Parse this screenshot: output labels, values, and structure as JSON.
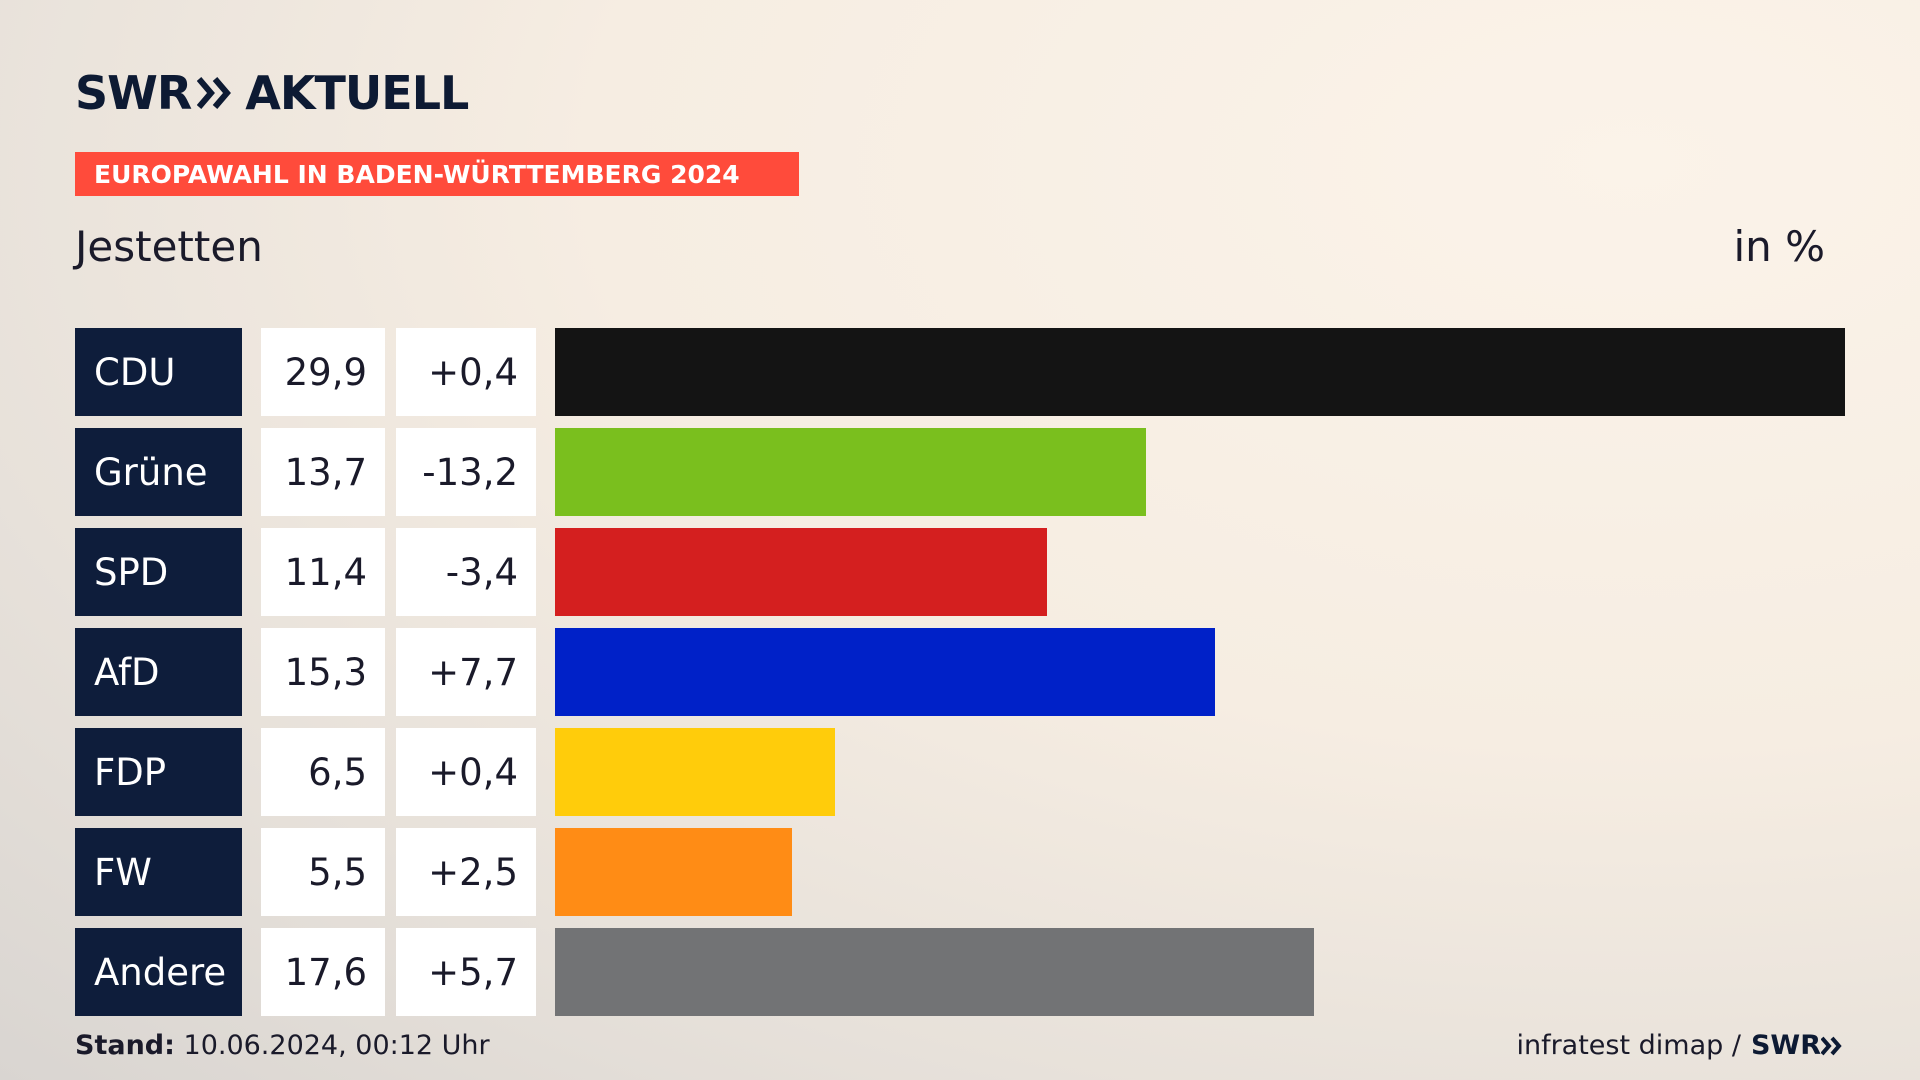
{
  "brand": {
    "logo_left": "SWR",
    "logo_right": "AKTUELL",
    "logo_icon": "double-chevron-icon"
  },
  "banner": "EUROPAWAHL IN BADEN-WÜRTTEMBERG 2024",
  "footer": {
    "stand_label": "Stand:",
    "stand_value": "10.06.2024, 00:12 Uhr",
    "source": "infratest dimap /",
    "source_logo": "SWR"
  },
  "chart_data": {
    "type": "bar",
    "title": "Jestetten",
    "unit": "in %",
    "categories": [
      "CDU",
      "Grüne",
      "SPD",
      "AfD",
      "FDP",
      "FW",
      "Andere"
    ],
    "values": [
      29.9,
      13.7,
      11.4,
      15.3,
      6.5,
      5.5,
      17.6
    ],
    "value_labels": [
      "29,9",
      "13,7",
      "11,4",
      "15,3",
      "6,5",
      "5,5",
      "17,6"
    ],
    "change_labels": [
      "+0,4",
      "-13,2",
      "-3,4",
      "+7,7",
      "+0,4",
      "+2,5",
      "+5,7"
    ],
    "colors": [
      "#141414",
      "#7abf1e",
      "#d41f1f",
      "#0021c8",
      "#ffcc0b",
      "#ff8c15",
      "#727375"
    ]
  }
}
